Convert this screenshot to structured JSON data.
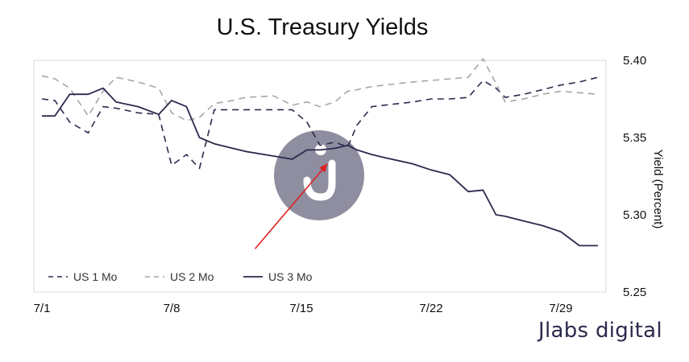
{
  "brand": {
    "text": "Jlabs digital",
    "color": "#2b2a4c"
  },
  "watermark": {
    "icon": "jlabs-logo-icon",
    "letter": "J",
    "color": "#8e8ea0"
  },
  "colors": {
    "us1": "#2b2a4c",
    "us2": "#a6a6a6",
    "us3": "#2b2a4c",
    "arrow": "#e02020",
    "frame": "#d9d9d9"
  },
  "chart_data": {
    "type": "line",
    "title": "U.S.  Treasury Yields",
    "ylabel": "Yield (Percent)",
    "xlabel": "",
    "y_axis_position": "right",
    "ylim": [
      5.25,
      5.4
    ],
    "yticks": [
      "5.25",
      "5.30",
      "5.35",
      "5.40"
    ],
    "xticks": [
      "7/1",
      "7/8",
      "7/15",
      "7/22",
      "7/29"
    ],
    "xtick_days": [
      1,
      8,
      15,
      22,
      29
    ],
    "xlim_days": [
      1,
      31
    ],
    "x_days": [
      1,
      1.7,
      2.5,
      3.5,
      4.3,
      5,
      6.2,
      7.3,
      8,
      8.8,
      9.5,
      10.3,
      11.3,
      12,
      13.5,
      14.5,
      15.3,
      16,
      16.8,
      17.5,
      18,
      18.8,
      19.5,
      21,
      22,
      23,
      24,
      24.8,
      25.5,
      26,
      27,
      28,
      29,
      30,
      31
    ],
    "series": [
      {
        "name": "US 1 Mo",
        "style": "dashed",
        "values": [
          5.375,
          5.374,
          5.36,
          5.353,
          5.37,
          5.369,
          5.366,
          5.365,
          5.332,
          5.339,
          5.33,
          5.368,
          5.368,
          5.368,
          5.368,
          5.368,
          5.36,
          5.345,
          5.347,
          5.344,
          5.358,
          5.37,
          5.371,
          5.373,
          5.375,
          5.375,
          5.376,
          5.387,
          5.382,
          5.376,
          5.378,
          5.381,
          5.384,
          5.386,
          5.389
        ]
      },
      {
        "name": "US 2 Mo",
        "style": "dashed",
        "values": [
          5.39,
          5.388,
          5.382,
          5.364,
          5.38,
          5.389,
          5.386,
          5.382,
          5.366,
          5.361,
          5.363,
          5.372,
          5.374,
          5.376,
          5.377,
          5.371,
          5.373,
          5.37,
          5.373,
          5.38,
          5.381,
          5.383,
          5.384,
          5.386,
          5.387,
          5.388,
          5.389,
          5.401,
          5.385,
          5.373,
          5.375,
          5.378,
          5.38,
          5.379,
          5.378
        ]
      },
      {
        "name": "US 3 Mo",
        "style": "solid",
        "values": [
          5.364,
          5.364,
          5.378,
          5.378,
          5.382,
          5.373,
          5.37,
          5.365,
          5.374,
          5.37,
          5.35,
          5.346,
          5.343,
          5.341,
          5.338,
          5.336,
          5.342,
          5.342,
          5.343,
          5.345,
          5.342,
          5.339,
          5.337,
          5.333,
          5.329,
          5.326,
          5.315,
          5.316,
          5.3,
          5.299,
          5.296,
          5.293,
          5.289,
          5.28,
          5.28
        ]
      }
    ],
    "legend": {
      "placement": "bottom-left",
      "entries": [
        "US 1 Mo",
        "US 2 Mo",
        "US 3 Mo"
      ]
    },
    "grid": false,
    "annotation": {
      "type": "arrow",
      "from": [
        12.5,
        5.278
      ],
      "to": [
        16.4,
        5.333
      ]
    }
  }
}
